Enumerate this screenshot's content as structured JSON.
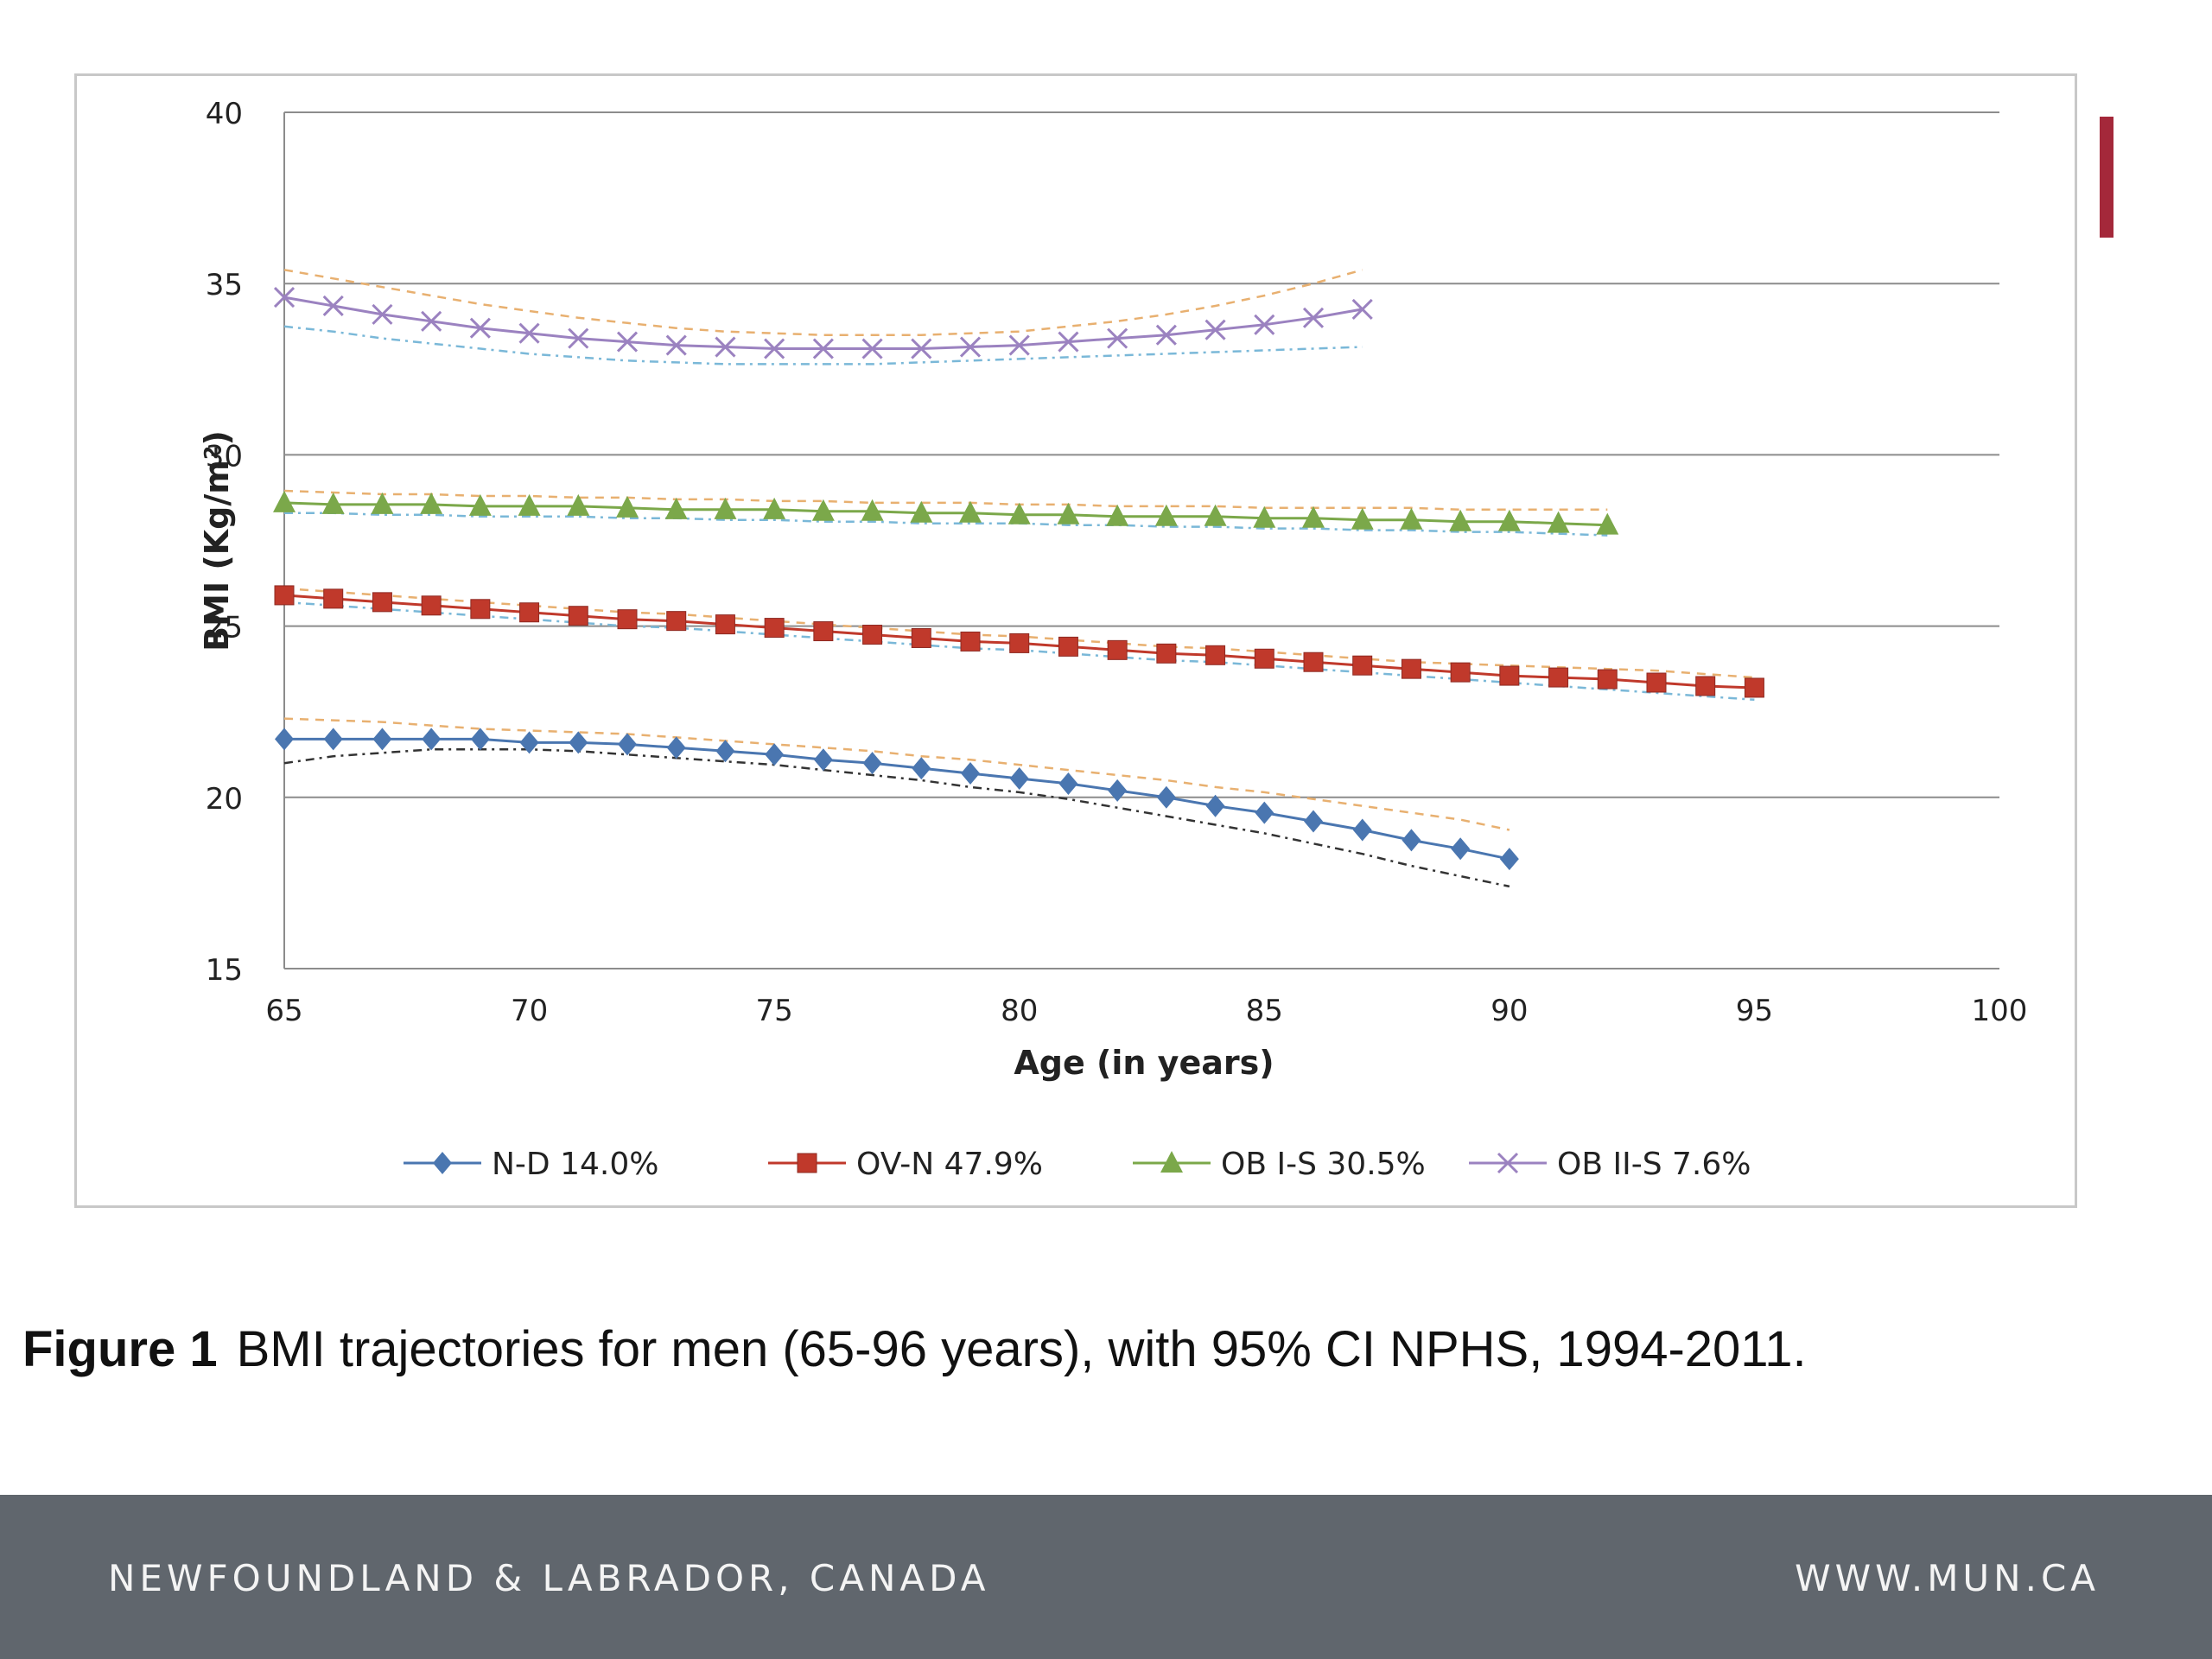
{
  "caption": {
    "label": "Figure  1",
    "text": "BMI trajectories for men (65-96 years), with 95% CI NPHS, 1994-2011."
  },
  "footer": {
    "left": "NEWFOUNDLAND & LABRADOR, CANADA",
    "right": "WWW.MUN.CA"
  },
  "colors": {
    "accent": "#a4283a",
    "footer_bg": "#60666d"
  },
  "chart_data": {
    "type": "line",
    "xlabel": "Age (in years)",
    "ylabel": "BMI (Kg/m²)",
    "xlim": [
      65,
      100
    ],
    "ylim": [
      15,
      40
    ],
    "xticks": [
      65,
      70,
      75,
      80,
      85,
      90,
      95,
      100
    ],
    "yticks": [
      15,
      20,
      25,
      30,
      35,
      40
    ],
    "grid": "horizontal",
    "legend_position": "bottom",
    "series": [
      {
        "name": "N-D 14.0%",
        "color": "#4a76b0",
        "marker": "diamond",
        "x": [
          65,
          66,
          67,
          68,
          69,
          70,
          71,
          72,
          73,
          74,
          75,
          76,
          77,
          78,
          79,
          80,
          81,
          82,
          83,
          84,
          85,
          86,
          87,
          88,
          89,
          90
        ],
        "y": [
          21.7,
          21.7,
          21.7,
          21.7,
          21.7,
          21.6,
          21.6,
          21.55,
          21.45,
          21.35,
          21.25,
          21.1,
          21.0,
          20.85,
          20.7,
          20.55,
          20.4,
          20.2,
          20.0,
          19.75,
          19.55,
          19.3,
          19.05,
          18.75,
          18.5,
          18.2
        ],
        "ci_lower": [
          21.0,
          21.2,
          21.3,
          21.4,
          21.4,
          21.4,
          21.35,
          21.25,
          21.15,
          21.05,
          20.95,
          20.8,
          20.65,
          20.5,
          20.3,
          20.15,
          19.95,
          19.7,
          19.45,
          19.2,
          18.95,
          18.65,
          18.35,
          18.0,
          17.7,
          17.4
        ],
        "ci_upper": [
          22.3,
          22.25,
          22.2,
          22.1,
          22.0,
          21.95,
          21.9,
          21.85,
          21.75,
          21.65,
          21.55,
          21.45,
          21.35,
          21.2,
          21.1,
          20.95,
          20.8,
          20.65,
          20.5,
          20.3,
          20.15,
          19.95,
          19.75,
          19.55,
          19.35,
          19.05
        ]
      },
      {
        "name": "OV-N 47.9%",
        "color": "#c0392b",
        "marker": "square",
        "x": [
          65,
          66,
          67,
          68,
          69,
          70,
          71,
          72,
          73,
          74,
          75,
          76,
          77,
          78,
          79,
          80,
          81,
          82,
          83,
          84,
          85,
          86,
          87,
          88,
          89,
          90,
          91,
          92,
          93,
          94,
          95
        ],
        "y": [
          25.9,
          25.8,
          25.7,
          25.6,
          25.5,
          25.4,
          25.3,
          25.2,
          25.15,
          25.05,
          24.95,
          24.85,
          24.75,
          24.65,
          24.55,
          24.5,
          24.4,
          24.3,
          24.2,
          24.15,
          24.05,
          23.95,
          23.85,
          23.75,
          23.65,
          23.55,
          23.5,
          23.45,
          23.35,
          23.25,
          23.2
        ],
        "ci_lower": [
          25.7,
          25.6,
          25.5,
          25.4,
          25.3,
          25.2,
          25.1,
          25.0,
          24.95,
          24.85,
          24.75,
          24.65,
          24.55,
          24.45,
          24.35,
          24.3,
          24.2,
          24.1,
          24.0,
          23.95,
          23.85,
          23.75,
          23.65,
          23.55,
          23.45,
          23.35,
          23.25,
          23.15,
          23.05,
          22.95,
          22.85
        ],
        "ci_upper": [
          26.1,
          26.0,
          25.9,
          25.8,
          25.7,
          25.6,
          25.5,
          25.4,
          25.35,
          25.25,
          25.15,
          25.05,
          24.95,
          24.85,
          24.75,
          24.7,
          24.6,
          24.5,
          24.4,
          24.35,
          24.25,
          24.15,
          24.05,
          23.95,
          23.9,
          23.85,
          23.8,
          23.75,
          23.7,
          23.6,
          23.5
        ]
      },
      {
        "name": "OB I-S 30.5%",
        "color": "#7ba84a",
        "marker": "triangle",
        "x": [
          65,
          66,
          67,
          68,
          69,
          70,
          71,
          72,
          73,
          74,
          75,
          76,
          77,
          78,
          79,
          80,
          81,
          82,
          83,
          84,
          85,
          86,
          87,
          88,
          89,
          90,
          91,
          92
        ],
        "y": [
          28.6,
          28.55,
          28.55,
          28.55,
          28.5,
          28.5,
          28.5,
          28.45,
          28.4,
          28.4,
          28.4,
          28.35,
          28.35,
          28.3,
          28.3,
          28.25,
          28.25,
          28.2,
          28.2,
          28.2,
          28.15,
          28.15,
          28.1,
          28.1,
          28.05,
          28.05,
          28.0,
          27.95
        ],
        "ci_lower": [
          28.3,
          28.3,
          28.25,
          28.25,
          28.2,
          28.2,
          28.2,
          28.15,
          28.15,
          28.1,
          28.1,
          28.05,
          28.05,
          28.0,
          28.0,
          28.0,
          27.95,
          27.95,
          27.9,
          27.9,
          27.85,
          27.85,
          27.8,
          27.8,
          27.75,
          27.75,
          27.7,
          27.65
        ],
        "ci_upper": [
          28.95,
          28.9,
          28.85,
          28.85,
          28.8,
          28.8,
          28.75,
          28.75,
          28.7,
          28.7,
          28.65,
          28.65,
          28.6,
          28.6,
          28.6,
          28.55,
          28.55,
          28.5,
          28.5,
          28.5,
          28.45,
          28.45,
          28.45,
          28.45,
          28.4,
          28.4,
          28.4,
          28.4
        ]
      },
      {
        "name": "OB II-S 7.6%",
        "color": "#9b82c0",
        "marker": "x",
        "x": [
          65,
          66,
          67,
          68,
          69,
          70,
          71,
          72,
          73,
          74,
          75,
          76,
          77,
          78,
          79,
          80,
          81,
          82,
          83,
          84,
          85,
          86,
          87
        ],
        "y": [
          34.6,
          34.35,
          34.1,
          33.9,
          33.7,
          33.55,
          33.4,
          33.3,
          33.2,
          33.15,
          33.1,
          33.1,
          33.1,
          33.1,
          33.15,
          33.2,
          33.3,
          33.4,
          33.5,
          33.65,
          33.8,
          34.0,
          34.25
        ],
        "ci_lower": [
          33.75,
          33.6,
          33.4,
          33.25,
          33.1,
          32.95,
          32.85,
          32.75,
          32.7,
          32.65,
          32.65,
          32.65,
          32.65,
          32.7,
          32.75,
          32.8,
          32.85,
          32.9,
          32.95,
          33.0,
          33.05,
          33.1,
          33.15
        ],
        "ci_upper": [
          35.4,
          35.15,
          34.9,
          34.65,
          34.4,
          34.2,
          34.0,
          33.85,
          33.7,
          33.6,
          33.55,
          33.5,
          33.5,
          33.5,
          33.55,
          33.6,
          33.75,
          33.9,
          34.1,
          34.35,
          34.65,
          35.0,
          35.4
        ]
      }
    ]
  }
}
